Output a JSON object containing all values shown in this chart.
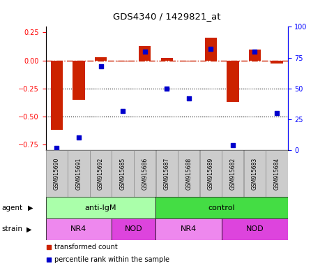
{
  "title": "GDS4340 / 1429821_at",
  "samples": [
    "GSM915690",
    "GSM915691",
    "GSM915692",
    "GSM915685",
    "GSM915686",
    "GSM915687",
    "GSM915688",
    "GSM915689",
    "GSM915682",
    "GSM915683",
    "GSM915684"
  ],
  "transformed_count": [
    -0.62,
    -0.35,
    0.03,
    -0.01,
    0.13,
    0.02,
    -0.01,
    0.2,
    -0.37,
    0.1,
    -0.03
  ],
  "percentile_rank": [
    2,
    10,
    68,
    32,
    80,
    50,
    42,
    82,
    4,
    80,
    30
  ],
  "ylim_left": [
    -0.8,
    0.3
  ],
  "ylim_right": [
    0,
    100
  ],
  "yticks_left": [
    0.25,
    0.0,
    -0.25,
    -0.5,
    -0.75
  ],
  "yticks_right": [
    100,
    75,
    50,
    25,
    0
  ],
  "hlines": [
    -0.25,
    -0.5
  ],
  "bar_color": "#cc2200",
  "dot_color": "#0000cc",
  "dashed_line_color": "#cc2200",
  "agent_groups": [
    {
      "label": "anti-IgM",
      "start": 0,
      "end": 5,
      "color": "#aaeea a"
    },
    {
      "label": "control",
      "start": 5,
      "end": 11,
      "color": "#44dd44"
    }
  ],
  "strain_groups": [
    {
      "label": "NR4",
      "start": 0,
      "end": 3,
      "color": "#ee88ee"
    },
    {
      "label": "NOD",
      "start": 3,
      "end": 5,
      "color": "#dd44dd"
    },
    {
      "label": "NR4",
      "start": 5,
      "end": 8,
      "color": "#ee88ee"
    },
    {
      "label": "NOD",
      "start": 8,
      "end": 11,
      "color": "#dd44dd"
    }
  ],
  "agent_light_color": "#aaffaa",
  "agent_dark_color": "#44dd44",
  "strain_light_color": "#ee88ee",
  "strain_dark_color": "#dd44dd",
  "legend_bar_label": "transformed count",
  "legend_dot_label": "percentile rank within the sample",
  "agent_label": "agent",
  "strain_label": "strain",
  "fig_width": 4.69,
  "fig_height": 3.84,
  "dpi": 100
}
